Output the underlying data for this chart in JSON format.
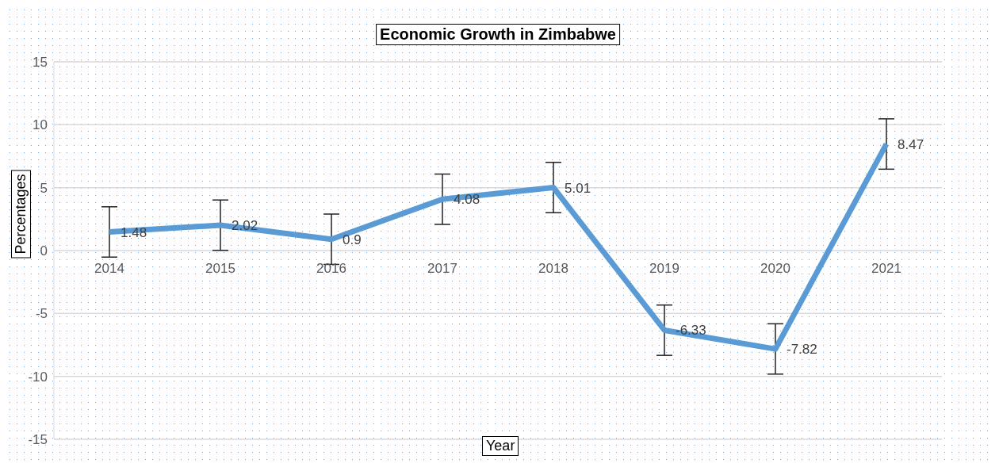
{
  "chart_data": {
    "type": "line",
    "title": "Economic Growth in Zimbabwe",
    "xlabel": "Year",
    "ylabel": "Percentages",
    "categories": [
      "2014",
      "2015",
      "2016",
      "2017",
      "2018",
      "2019",
      "2020",
      "2021"
    ],
    "series": [
      {
        "color": "#5b9bd5",
        "values": [
          1.48,
          2.02,
          0.9,
          4.08,
          5.01,
          -6.33,
          -7.82,
          8.47
        ],
        "errors": [
          2,
          2,
          2,
          2,
          2,
          2,
          2,
          2
        ]
      }
    ],
    "ylim": [
      -15,
      15
    ],
    "yticks": [
      -15,
      -10,
      -5,
      0,
      5,
      10,
      15
    ],
    "grid": "y",
    "data_labels": true,
    "marker": "none",
    "line_style": "solid"
  }
}
